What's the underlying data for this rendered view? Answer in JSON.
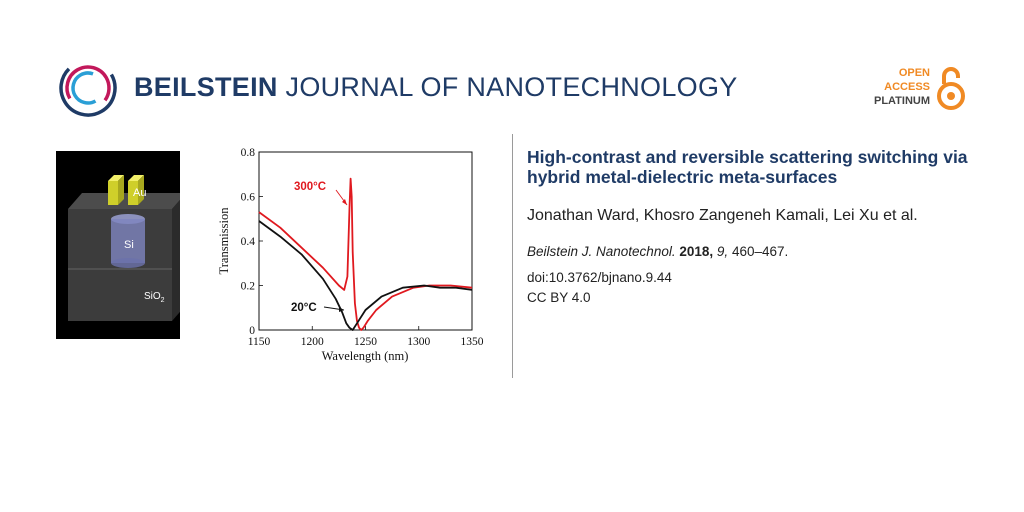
{
  "header": {
    "journal_bold": "BEILSTEIN",
    "journal_rest": "JOURNAL OF NANOTECHNOLOGY",
    "oa_line1": "OPEN",
    "oa_line2": "ACCESS",
    "oa_line3": "PLATINUM"
  },
  "figure": {
    "label_au": "Au",
    "label_si": "Si",
    "label_sio2": "SiO",
    "label_sio2_sub": "2"
  },
  "chart_data": {
    "type": "line",
    "xlabel": "Wavelength (nm)",
    "ylabel": "Transmission",
    "xlim": [
      1150,
      1350
    ],
    "ylim": [
      0,
      0.8
    ],
    "xticks": [
      "1150",
      "1200",
      "1250",
      "1300",
      "1350"
    ],
    "yticks": [
      "0",
      "0.2",
      "0.4",
      "0.6",
      "0.8"
    ],
    "annotations": [
      "300°C",
      "20°C"
    ],
    "series": [
      {
        "name": "300°C",
        "color": "#e0191f",
        "x": [
          1150,
          1170,
          1190,
          1210,
          1225,
          1230,
          1233,
          1235,
          1236,
          1237,
          1238,
          1240,
          1242,
          1244,
          1246,
          1248,
          1252,
          1260,
          1275,
          1295,
          1310,
          1330,
          1350
        ],
        "y": [
          0.53,
          0.46,
          0.37,
          0.28,
          0.2,
          0.18,
          0.24,
          0.55,
          0.68,
          0.6,
          0.35,
          0.12,
          0.04,
          0.01,
          0.0,
          0.01,
          0.04,
          0.09,
          0.15,
          0.19,
          0.2,
          0.2,
          0.19
        ]
      },
      {
        "name": "20°C",
        "color": "#111111",
        "x": [
          1150,
          1170,
          1190,
          1210,
          1222,
          1228,
          1232,
          1235,
          1238,
          1242,
          1250,
          1265,
          1285,
          1305,
          1320,
          1335,
          1350
        ],
        "y": [
          0.49,
          0.42,
          0.34,
          0.23,
          0.14,
          0.08,
          0.03,
          0.01,
          0.0,
          0.03,
          0.09,
          0.15,
          0.19,
          0.2,
          0.19,
          0.19,
          0.18
        ]
      }
    ]
  },
  "article": {
    "title": "High-contrast and reversible scattering switching via hybrid metal-dielectric meta-surfaces",
    "authors": "Jonathan Ward, Khosro Zangeneh Kamali, Lei Xu et al.",
    "journal": "Beilstein J. Nanotechnol.",
    "year": "2018,",
    "volume": "9,",
    "pages": "460–467.",
    "doi": "doi:10.3762/bjnano.9.44",
    "license": "CC BY 4.0"
  }
}
